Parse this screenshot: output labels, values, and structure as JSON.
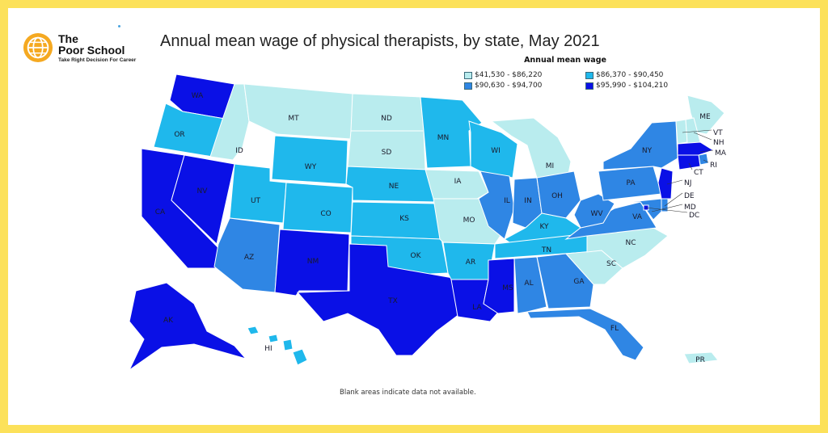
{
  "brand": {
    "name_line1": "The",
    "name_line2": "Poor School",
    "tagline": "Take Right Decision For Career"
  },
  "title": "Annual mean wage of physical therapists, by state, May 2021",
  "legend": {
    "title": "Annual mean wage",
    "items": [
      {
        "label": "$41,530 - $86,220",
        "color": "#b9ecee"
      },
      {
        "label": "$86,370 - $90,450",
        "color": "#1fb8ec"
      },
      {
        "label": "$90,630 - $94,700",
        "color": "#2f86e4"
      },
      {
        "label": "$95,990 - $104,210",
        "color": "#0a10e6"
      }
    ]
  },
  "footnote": "Blank areas indicate data not available.",
  "colors": {
    "background_border": "#fce15a",
    "tier1": "#b9ecee",
    "tier2": "#1fb8ec",
    "tier3": "#2f86e4",
    "tier4": "#0a10e6"
  },
  "states": [
    {
      "code": "WA",
      "tier": 4
    },
    {
      "code": "OR",
      "tier": 2
    },
    {
      "code": "CA",
      "tier": 4
    },
    {
      "code": "NV",
      "tier": 4
    },
    {
      "code": "ID",
      "tier": 1
    },
    {
      "code": "MT",
      "tier": 1
    },
    {
      "code": "WY",
      "tier": 2
    },
    {
      "code": "UT",
      "tier": 2
    },
    {
      "code": "AZ",
      "tier": 3
    },
    {
      "code": "CO",
      "tier": 2
    },
    {
      "code": "NM",
      "tier": 4
    },
    {
      "code": "ND",
      "tier": 1
    },
    {
      "code": "SD",
      "tier": 1
    },
    {
      "code": "NE",
      "tier": 2
    },
    {
      "code": "KS",
      "tier": 2
    },
    {
      "code": "OK",
      "tier": 2
    },
    {
      "code": "TX",
      "tier": 4
    },
    {
      "code": "MN",
      "tier": 2
    },
    {
      "code": "IA",
      "tier": 1
    },
    {
      "code": "MO",
      "tier": 1
    },
    {
      "code": "AR",
      "tier": 2
    },
    {
      "code": "LA",
      "tier": 4
    },
    {
      "code": "WI",
      "tier": 2
    },
    {
      "code": "IL",
      "tier": 3
    },
    {
      "code": "MI",
      "tier": 1
    },
    {
      "code": "IN",
      "tier": 3
    },
    {
      "code": "OH",
      "tier": 3
    },
    {
      "code": "KY",
      "tier": 2
    },
    {
      "code": "TN",
      "tier": 2
    },
    {
      "code": "MS",
      "tier": 4
    },
    {
      "code": "AL",
      "tier": 3
    },
    {
      "code": "GA",
      "tier": 3
    },
    {
      "code": "FL",
      "tier": 3
    },
    {
      "code": "SC",
      "tier": 1
    },
    {
      "code": "NC",
      "tier": 1
    },
    {
      "code": "VA",
      "tier": 3
    },
    {
      "code": "WV",
      "tier": 3
    },
    {
      "code": "PA",
      "tier": 3
    },
    {
      "code": "NY",
      "tier": 3
    },
    {
      "code": "ME",
      "tier": 1
    },
    {
      "code": "VT",
      "tier": 1
    },
    {
      "code": "NH",
      "tier": 1
    },
    {
      "code": "MA",
      "tier": 4
    },
    {
      "code": "RI",
      "tier": 3
    },
    {
      "code": "CT",
      "tier": 4
    },
    {
      "code": "NJ",
      "tier": 4
    },
    {
      "code": "DE",
      "tier": 3
    },
    {
      "code": "MD",
      "tier": 3
    },
    {
      "code": "DC",
      "tier": 4
    },
    {
      "code": "AK",
      "tier": 4
    },
    {
      "code": "HI",
      "tier": 2
    },
    {
      "code": "PR",
      "tier": 1
    }
  ]
}
